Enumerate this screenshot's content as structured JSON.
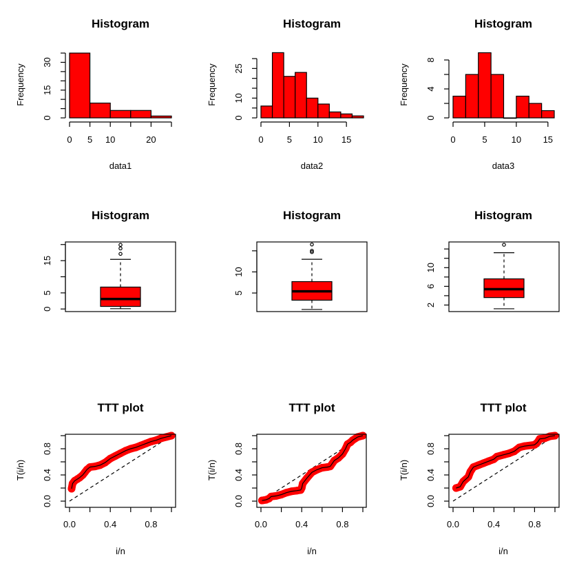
{
  "colors": {
    "fill": "#ff0000",
    "stroke": "#000000",
    "background": "#ffffff"
  },
  "chart_data": [
    {
      "id": "hist1",
      "type": "bar",
      "title": "Histogram",
      "xlabel": "data1",
      "ylabel": "Frequency",
      "bin_edges": [
        0,
        5,
        10,
        15,
        20,
        25
      ],
      "values": [
        35,
        8,
        4,
        4,
        1
      ],
      "xlim": [
        0,
        25
      ],
      "ylim": [
        0,
        35
      ],
      "xticks": [
        0,
        5,
        10,
        15,
        20,
        25
      ],
      "xtick_labels": [
        "0",
        "5",
        "10",
        "",
        "20",
        ""
      ],
      "yticks": [
        0,
        5,
        10,
        15,
        20,
        25,
        30,
        35
      ],
      "ytick_labels": [
        "0",
        "",
        "",
        "15",
        "",
        "",
        "30",
        ""
      ]
    },
    {
      "id": "hist2",
      "type": "bar",
      "title": "Histogram",
      "xlabel": "data2",
      "ylabel": "Frequency",
      "bin_edges": [
        0,
        2,
        4,
        6,
        8,
        10,
        12,
        14,
        16,
        18
      ],
      "values": [
        6,
        33,
        21,
        23,
        10,
        7,
        3,
        2,
        1
      ],
      "xlim": [
        0,
        18
      ],
      "ylim": [
        0,
        30
      ],
      "xticks": [
        0,
        5,
        10,
        15
      ],
      "xtick_labels": [
        "0",
        "5",
        "10",
        "15"
      ],
      "yticks": [
        0,
        5,
        10,
        15,
        20,
        25,
        30
      ],
      "ytick_labels": [
        "0",
        "",
        "10",
        "",
        "",
        "25",
        ""
      ]
    },
    {
      "id": "hist3",
      "type": "bar",
      "title": "Histogram",
      "xlabel": "data3",
      "ylabel": "Frequency",
      "bin_edges": [
        0,
        2,
        4,
        6,
        8,
        10,
        12,
        14,
        16
      ],
      "values": [
        3,
        6,
        9,
        6,
        0,
        3,
        2,
        1
      ],
      "xlim": [
        0,
        16
      ],
      "ylim": [
        0,
        8
      ],
      "xticks": [
        0,
        5,
        10,
        15
      ],
      "xtick_labels": [
        "0",
        "5",
        "10",
        "15"
      ],
      "yticks": [
        0,
        2,
        4,
        6,
        8
      ],
      "ytick_labels": [
        "0",
        "",
        "4",
        "",
        "8"
      ]
    },
    {
      "id": "box1",
      "type": "box",
      "title": "Histogram",
      "stats": {
        "min": 0.1,
        "q1": 0.8,
        "median": 3.1,
        "q3": 6.8,
        "max": 15.4
      },
      "outliers": [
        17.1,
        18.8,
        19.9
      ],
      "ylim": [
        -0.8,
        20.8
      ],
      "yticks": [
        0,
        5,
        10,
        15,
        20
      ],
      "ytick_labels": [
        "0",
        "5",
        "",
        "15",
        ""
      ]
    },
    {
      "id": "box2",
      "type": "box",
      "title": "Histogram",
      "stats": {
        "min": 1.1,
        "q1": 3.3,
        "median": 5.4,
        "q3": 7.7,
        "max": 13.0
      },
      "outliers": [
        14.7,
        15.0,
        16.5
      ],
      "ylim": [
        0.6,
        17.1
      ],
      "yticks": [
        5,
        10,
        15
      ],
      "ytick_labels": [
        "5",
        "10",
        ""
      ]
    },
    {
      "id": "box3",
      "type": "box",
      "title": "Histogram",
      "stats": {
        "min": 1.2,
        "q1": 3.6,
        "median": 5.4,
        "q3": 7.6,
        "max": 13.2
      },
      "outliers": [
        14.9
      ],
      "ylim": [
        0.6,
        15.5
      ],
      "yticks": [
        2,
        4,
        6,
        8,
        10,
        12,
        14
      ],
      "ytick_labels": [
        "2",
        "",
        "6",
        "",
        "10",
        "",
        ""
      ]
    },
    {
      "id": "ttt1",
      "type": "line",
      "title": "TTT plot",
      "xlabel": "i/n",
      "ylabel": "T(i/n)",
      "x": [
        0.02,
        0.03,
        0.05,
        0.08,
        0.1,
        0.13,
        0.15,
        0.17,
        0.2,
        0.25,
        0.3,
        0.35,
        0.4,
        0.45,
        0.5,
        0.55,
        0.6,
        0.65,
        0.7,
        0.75,
        0.8,
        0.85,
        0.9,
        0.95,
        1.0
      ],
      "y": [
        0.19,
        0.27,
        0.31,
        0.34,
        0.36,
        0.4,
        0.44,
        0.48,
        0.52,
        0.53,
        0.55,
        0.59,
        0.65,
        0.69,
        0.73,
        0.77,
        0.8,
        0.82,
        0.85,
        0.88,
        0.91,
        0.93,
        0.96,
        0.98,
        1.0
      ],
      "diagonal": [
        [
          0,
          0
        ],
        [
          1,
          1
        ]
      ],
      "xlim": [
        0,
        1
      ],
      "ylim": [
        0,
        1
      ],
      "xticks": [
        0,
        0.2,
        0.4,
        0.6,
        0.8,
        1.0
      ],
      "xtick_labels": [
        "0.0",
        "",
        "0.4",
        "",
        "0.8",
        ""
      ],
      "yticks": [
        0,
        0.2,
        0.4,
        0.6,
        0.8,
        1.0
      ],
      "ytick_labels": [
        "0.0",
        "",
        "0.4",
        "",
        "0.8",
        ""
      ]
    },
    {
      "id": "ttt2",
      "type": "line",
      "title": "TTT plot",
      "xlabel": "i/n",
      "ylabel": "T(i/n)",
      "x": [
        0.01,
        0.05,
        0.08,
        0.1,
        0.15,
        0.2,
        0.25,
        0.3,
        0.35,
        0.39,
        0.4,
        0.41,
        0.45,
        0.5,
        0.55,
        0.6,
        0.65,
        0.68,
        0.72,
        0.76,
        0.8,
        0.83,
        0.85,
        0.88,
        0.9,
        0.95,
        1.0
      ],
      "y": [
        0.01,
        0.02,
        0.04,
        0.07,
        0.08,
        0.1,
        0.13,
        0.15,
        0.16,
        0.17,
        0.2,
        0.27,
        0.35,
        0.44,
        0.48,
        0.51,
        0.52,
        0.53,
        0.62,
        0.66,
        0.72,
        0.8,
        0.87,
        0.9,
        0.93,
        0.98,
        1.0
      ],
      "diagonal": [
        [
          0,
          0
        ],
        [
          1,
          1
        ]
      ],
      "xlim": [
        0,
        1
      ],
      "ylim": [
        0,
        1
      ],
      "xticks": [
        0,
        0.2,
        0.4,
        0.6,
        0.8,
        1.0
      ],
      "xtick_labels": [
        "0.0",
        "",
        "0.4",
        "",
        "0.8",
        ""
      ],
      "yticks": [
        0,
        0.2,
        0.4,
        0.6,
        0.8,
        1.0
      ],
      "ytick_labels": [
        "0.0",
        "",
        "0.4",
        "",
        "0.8",
        ""
      ]
    },
    {
      "id": "ttt3",
      "type": "line",
      "title": "TTT plot",
      "xlabel": "i/n",
      "ylabel": "T(i/n)",
      "x": [
        0.03,
        0.07,
        0.1,
        0.15,
        0.17,
        0.2,
        0.25,
        0.3,
        0.35,
        0.4,
        0.43,
        0.5,
        0.55,
        0.6,
        0.65,
        0.7,
        0.8,
        0.83,
        0.85,
        0.9,
        0.95,
        1.0
      ],
      "y": [
        0.2,
        0.22,
        0.3,
        0.37,
        0.45,
        0.52,
        0.55,
        0.58,
        0.61,
        0.64,
        0.68,
        0.71,
        0.73,
        0.76,
        0.82,
        0.84,
        0.86,
        0.9,
        0.95,
        0.96,
        0.99,
        1.0
      ],
      "diagonal": [
        [
          0,
          0
        ],
        [
          1,
          1
        ]
      ],
      "xlim": [
        0,
        1
      ],
      "ylim": [
        0,
        1
      ],
      "xticks": [
        0,
        0.2,
        0.4,
        0.6,
        0.8,
        1.0
      ],
      "xtick_labels": [
        "0.0",
        "",
        "0.4",
        "",
        "0.8",
        ""
      ],
      "yticks": [
        0,
        0.2,
        0.4,
        0.6,
        0.8,
        1.0
      ],
      "ytick_labels": [
        "0.0",
        "",
        "0.4",
        "",
        "0.8",
        ""
      ]
    }
  ]
}
